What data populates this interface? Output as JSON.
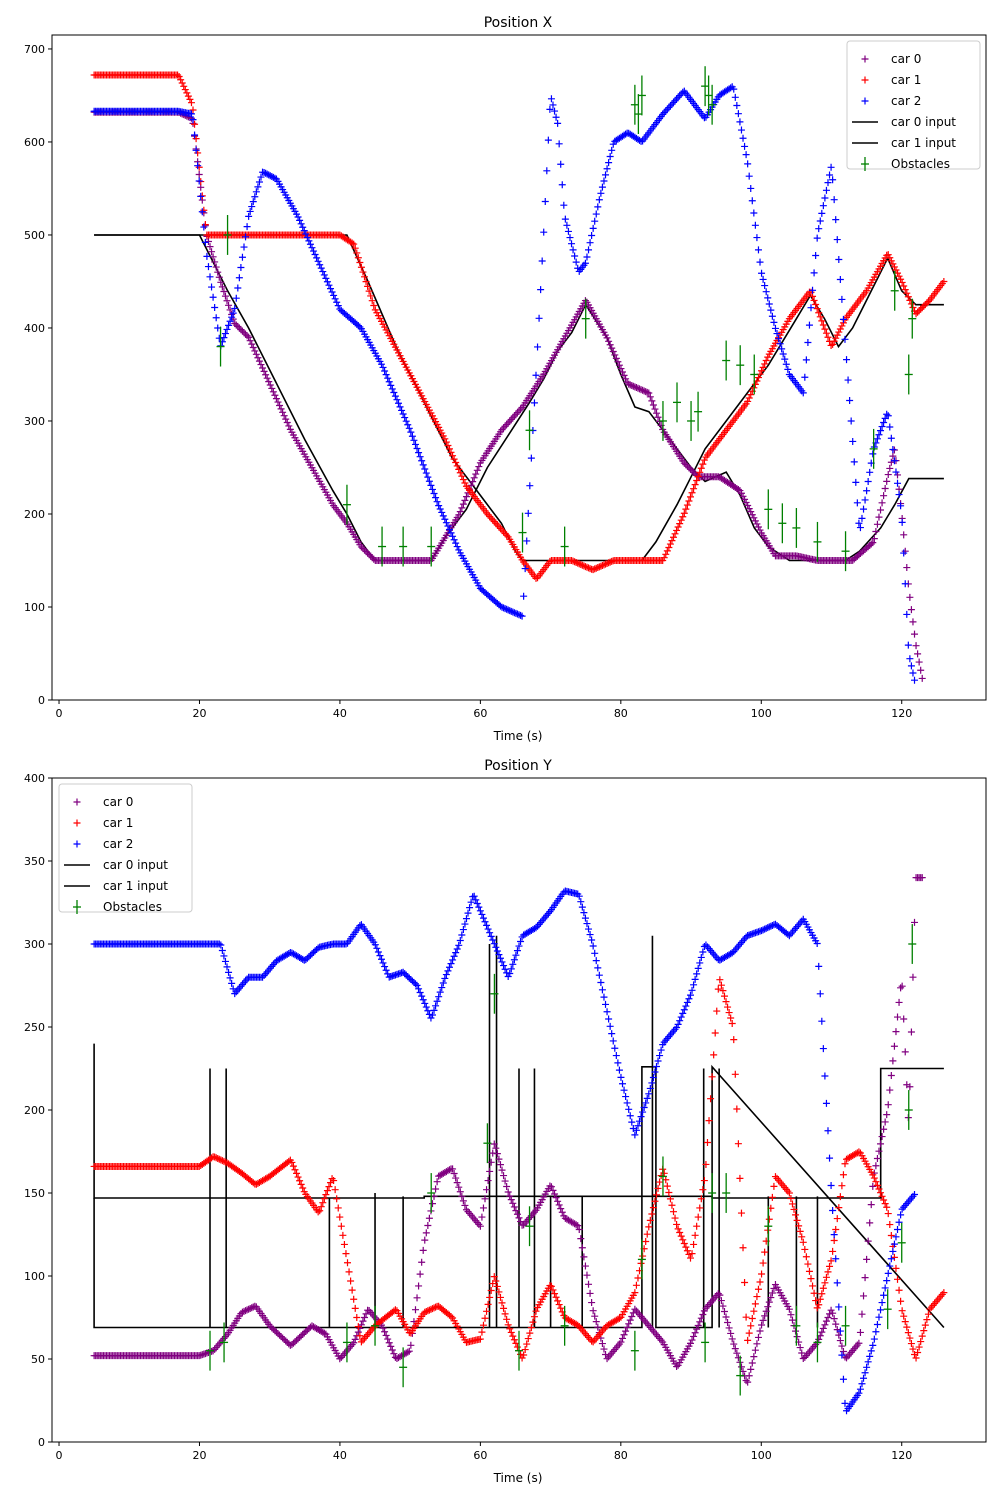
{
  "chart_data": [
    {
      "type": "scatter",
      "title": "Position X",
      "xlabel": "Time (s)",
      "ylabel": "",
      "xlim": [
        -1,
        132
      ],
      "ylim": [
        0,
        715
      ],
      "xticks": [
        0,
        20,
        40,
        60,
        80,
        100,
        120
      ],
      "yticks": [
        0,
        100,
        200,
        300,
        400,
        500,
        600,
        700
      ],
      "grid": false,
      "legend_position": "top-right",
      "legend": [
        "car 0",
        "car 1",
        "car 2",
        "car 0 input",
        "car 1 input",
        "Obstacles"
      ],
      "series": [
        {
          "name": "car 0",
          "kind": "scatter",
          "color": "#800080",
          "x": [
            5,
            17,
            19,
            21,
            23,
            25,
            27,
            30,
            33,
            36,
            39,
            41,
            43,
            45,
            48,
            51,
            53,
            55,
            57,
            60,
            63,
            66,
            69,
            72,
            75,
            78,
            81,
            84,
            86,
            89,
            91,
            94,
            97,
            100,
            102,
            105,
            108,
            111,
            113,
            116,
            118,
            119,
            120,
            121,
            122,
            123
          ],
          "y": [
            632,
            632,
            625,
            500,
            450,
            405,
            390,
            340,
            290,
            250,
            210,
            190,
            165,
            150,
            150,
            150,
            150,
            175,
            200,
            255,
            290,
            315,
            350,
            390,
            430,
            390,
            340,
            330,
            290,
            255,
            240,
            240,
            225,
            180,
            155,
            155,
            150,
            150,
            150,
            170,
            240,
            270,
            200,
            120,
            60,
            20
          ]
        },
        {
          "name": "car 1",
          "kind": "scatter",
          "color": "#ff0000",
          "x": [
            5,
            17,
            19,
            21,
            23,
            26,
            30,
            35,
            40,
            42,
            45,
            50,
            55,
            58,
            61,
            64,
            66,
            68,
            70,
            73,
            76,
            79,
            83,
            86,
            89,
            92,
            95,
            98,
            101,
            104,
            107,
            110,
            112,
            115,
            118,
            120,
            122,
            124,
            126
          ],
          "y": [
            672,
            672,
            640,
            500,
            500,
            500,
            500,
            500,
            500,
            490,
            420,
            350,
            280,
            230,
            200,
            175,
            150,
            130,
            150,
            150,
            140,
            150,
            150,
            150,
            200,
            260,
            290,
            320,
            370,
            410,
            440,
            380,
            410,
            440,
            480,
            450,
            415,
            430,
            450
          ]
        },
        {
          "name": "car 2",
          "kind": "scatter",
          "color": "#0000ff",
          "x": [
            5,
            17,
            19,
            21,
            23,
            25,
            27,
            29,
            31,
            34,
            37,
            40,
            43,
            46,
            50,
            54,
            57,
            60,
            63,
            66,
            68,
            69,
            70,
            71,
            72,
            74,
            75,
            77,
            79,
            81,
            83,
            86,
            89,
            92,
            94,
            96,
            98,
            100,
            102,
            104,
            106,
            108,
            110,
            112,
            114,
            116,
            118,
            120,
            121,
            122
          ],
          "y": [
            633,
            633,
            630,
            480,
            380,
            420,
            520,
            568,
            560,
            520,
            470,
            420,
            400,
            360,
            290,
            210,
            160,
            120,
            100,
            90,
            360,
            500,
            650,
            620,
            520,
            460,
            470,
            540,
            600,
            610,
            600,
            630,
            655,
            625,
            650,
            660,
            580,
            460,
            400,
            350,
            330,
            500,
            575,
            380,
            180,
            270,
            310,
            200,
            50,
            15
          ]
        },
        {
          "name": "car 0 input",
          "kind": "line",
          "color": "#000000",
          "x": [
            5,
            20,
            24,
            27,
            31,
            35,
            39,
            41,
            43,
            45,
            48,
            53,
            55,
            58,
            61,
            64,
            67,
            69,
            71,
            73,
            75,
            78,
            80,
            82,
            84,
            86,
            88,
            90,
            92,
            95,
            97,
            99,
            101,
            104,
            112,
            114,
            117,
            119,
            121,
            126
          ],
          "y": [
            500,
            500,
            440,
            400,
            340,
            280,
            225,
            200,
            170,
            150,
            150,
            150,
            175,
            205,
            250,
            285,
            320,
            345,
            375,
            395,
            425,
            390,
            350,
            315,
            310,
            290,
            270,
            250,
            235,
            245,
            220,
            185,
            165,
            150,
            150,
            160,
            185,
            210,
            238,
            238
          ]
        },
        {
          "name": "car 1 input",
          "kind": "line",
          "color": "#000000",
          "x": [
            5,
            20,
            41,
            44,
            48,
            52,
            56,
            60,
            63,
            65,
            66,
            83,
            85,
            88,
            90,
            92,
            95,
            98,
            101,
            105,
            107,
            109,
            111,
            113,
            115,
            118,
            120,
            122,
            126
          ],
          "y": [
            500,
            500,
            500,
            450,
            380,
            320,
            260,
            220,
            190,
            160,
            150,
            150,
            170,
            210,
            240,
            270,
            300,
            330,
            360,
            410,
            435,
            410,
            380,
            400,
            430,
            475,
            440,
            425,
            425
          ]
        }
      ],
      "obstacles": {
        "name": "Obstacles",
        "color": "#008000",
        "x": [
          23,
          24,
          41,
          46,
          49,
          53,
          66,
          67,
          72,
          75,
          82,
          82.5,
          83,
          86,
          88,
          90,
          91,
          92,
          92.5,
          93,
          95,
          97,
          99,
          101,
          103,
          105,
          108,
          112,
          116,
          119,
          121,
          121.5
        ],
        "y": [
          380,
          500,
          210,
          165,
          165,
          165,
          180,
          290,
          165,
          410,
          640,
          630,
          650,
          300,
          320,
          300,
          310,
          660,
          650,
          640,
          365,
          360,
          350,
          205,
          190,
          185,
          170,
          160,
          270,
          440,
          350,
          410
        ]
      }
    },
    {
      "type": "scatter",
      "title": "Position Y",
      "xlabel": "Time (s)",
      "ylabel": "",
      "xlim": [
        -1,
        132
      ],
      "ylim": [
        0,
        400
      ],
      "xticks": [
        0,
        20,
        40,
        60,
        80,
        100,
        120
      ],
      "yticks": [
        0,
        50,
        100,
        150,
        200,
        250,
        300,
        350,
        400
      ],
      "grid": false,
      "legend_position": "top-left",
      "legend": [
        "car 0",
        "car 1",
        "car 2",
        "car 0 input",
        "car 1 input",
        "Obstacles"
      ],
      "series": [
        {
          "name": "car 0",
          "kind": "scatter",
          "color": "#800080",
          "x": [
            5,
            20,
            22,
            24,
            26,
            28,
            30,
            33,
            36,
            38,
            40,
            42,
            44,
            46,
            48,
            50,
            52,
            54,
            56,
            58,
            60,
            62,
            64,
            66,
            68,
            70,
            72,
            74,
            76,
            78,
            80,
            82,
            84,
            86,
            88,
            90,
            92,
            94,
            96,
            98,
            100,
            102,
            104,
            106,
            108,
            110,
            112,
            114,
            116,
            118,
            120,
            121,
            122,
            123
          ],
          "y": [
            52,
            52,
            55,
            65,
            78,
            82,
            70,
            58,
            70,
            65,
            50,
            60,
            80,
            70,
            50,
            55,
            120,
            160,
            165,
            140,
            130,
            180,
            150,
            130,
            140,
            155,
            135,
            130,
            80,
            50,
            60,
            80,
            70,
            60,
            45,
            60,
            80,
            90,
            60,
            35,
            70,
            95,
            80,
            50,
            60,
            80,
            50,
            60,
            160,
            200,
            280,
            190,
            340,
            340
          ]
        },
        {
          "name": "car 1",
          "kind": "scatter",
          "color": "#ff0000",
          "x": [
            5,
            20,
            22,
            24,
            26,
            28,
            30,
            33,
            35,
            37,
            39,
            41,
            43,
            45,
            48,
            50,
            52,
            54,
            56,
            58,
            60,
            62,
            64,
            66,
            68,
            70,
            72,
            74,
            76,
            78,
            80,
            82,
            84,
            86,
            88,
            90,
            92,
            94,
            96,
            98,
            100,
            102,
            104,
            106,
            108,
            110,
            112,
            114,
            116,
            118,
            120,
            122,
            124,
            126
          ],
          "y": [
            166,
            166,
            172,
            168,
            162,
            155,
            160,
            170,
            150,
            138,
            160,
            110,
            60,
            70,
            80,
            65,
            78,
            82,
            75,
            60,
            62,
            100,
            70,
            50,
            80,
            95,
            75,
            70,
            60,
            70,
            75,
            90,
            130,
            165,
            130,
            110,
            160,
            280,
            250,
            60,
            100,
            160,
            150,
            120,
            80,
            110,
            170,
            175,
            160,
            140,
            80,
            50,
            80,
            90
          ]
        },
        {
          "name": "car 2",
          "kind": "scatter",
          "color": "#0000ff",
          "x": [
            5,
            20,
            23,
            25,
            27,
            29,
            31,
            33,
            35,
            37,
            39,
            41,
            43,
            45,
            47,
            49,
            51,
            53,
            55,
            57,
            59,
            60,
            62,
            64,
            66,
            68,
            70,
            72,
            74,
            76,
            78,
            80,
            82,
            84,
            86,
            88,
            90,
            92,
            94,
            96,
            98,
            100,
            102,
            104,
            106,
            108,
            110,
            112,
            114,
            116,
            118,
            120,
            122
          ],
          "y": [
            300,
            300,
            300,
            270,
            280,
            280,
            290,
            295,
            290,
            298,
            300,
            300,
            312,
            300,
            280,
            283,
            275,
            255,
            280,
            300,
            330,
            320,
            300,
            280,
            305,
            310,
            320,
            332,
            330,
            300,
            260,
            220,
            185,
            210,
            240,
            250,
            270,
            300,
            290,
            295,
            305,
            308,
            312,
            305,
            315,
            300,
            150,
            18,
            30,
            60,
            100,
            140,
            150
          ]
        },
        {
          "name": "car 0 input",
          "kind": "line",
          "color": "#000000",
          "x": [
            5,
            5,
            40,
            40,
            52,
            52,
            81,
            81,
            93,
            93,
            98,
            98,
            117,
            117,
            126
          ],
          "y": [
            240,
            147,
            147,
            147,
            147,
            148,
            148,
            148,
            148,
            147,
            147,
            147,
            147,
            225,
            225
          ]
        },
        {
          "name": "car 1 input",
          "kind": "line",
          "color": "#000000",
          "x": [
            5,
            5,
            38,
            38,
            83,
            83,
            85,
            85,
            93,
            93,
            126
          ],
          "y": [
            147,
            69,
            69,
            69,
            69,
            226,
            226,
            69,
            69,
            226,
            69
          ]
        }
      ],
      "input_spikes": [
        {
          "x": 21.5,
          "from": 69,
          "to": 225
        },
        {
          "x": 23.8,
          "from": 69,
          "to": 225
        },
        {
          "x": 38.5,
          "from": 69,
          "to": 147
        },
        {
          "x": 45,
          "from": 69,
          "to": 150
        },
        {
          "x": 49,
          "from": 69,
          "to": 148
        },
        {
          "x": 61.3,
          "from": 69,
          "to": 300
        },
        {
          "x": 62.3,
          "from": 69,
          "to": 305
        },
        {
          "x": 65.5,
          "from": 69,
          "to": 225
        },
        {
          "x": 67.7,
          "from": 69,
          "to": 225
        },
        {
          "x": 70,
          "from": 69,
          "to": 148
        },
        {
          "x": 74.5,
          "from": 69,
          "to": 148
        },
        {
          "x": 84.5,
          "from": 69,
          "to": 305
        },
        {
          "x": 91.8,
          "from": 69,
          "to": 225
        },
        {
          "x": 94,
          "from": 69,
          "to": 225
        },
        {
          "x": 101,
          "from": 69,
          "to": 148
        },
        {
          "x": 105,
          "from": 69,
          "to": 148
        },
        {
          "x": 108,
          "from": 69,
          "to": 148
        }
      ],
      "obstacles": {
        "name": "Obstacles",
        "color": "#008000",
        "x": [
          21.5,
          23.5,
          41,
          45,
          49,
          53,
          61,
          62,
          65.5,
          67,
          72,
          82,
          83,
          86,
          92,
          93,
          95,
          97,
          101,
          105,
          108,
          112,
          118,
          120,
          121,
          121.5
        ],
        "y": [
          55,
          60,
          60,
          70,
          45,
          150,
          180,
          270,
          55,
          130,
          70,
          55,
          110,
          160,
          60,
          150,
          150,
          40,
          130,
          70,
          60,
          70,
          80,
          120,
          200,
          300
        ]
      }
    }
  ]
}
